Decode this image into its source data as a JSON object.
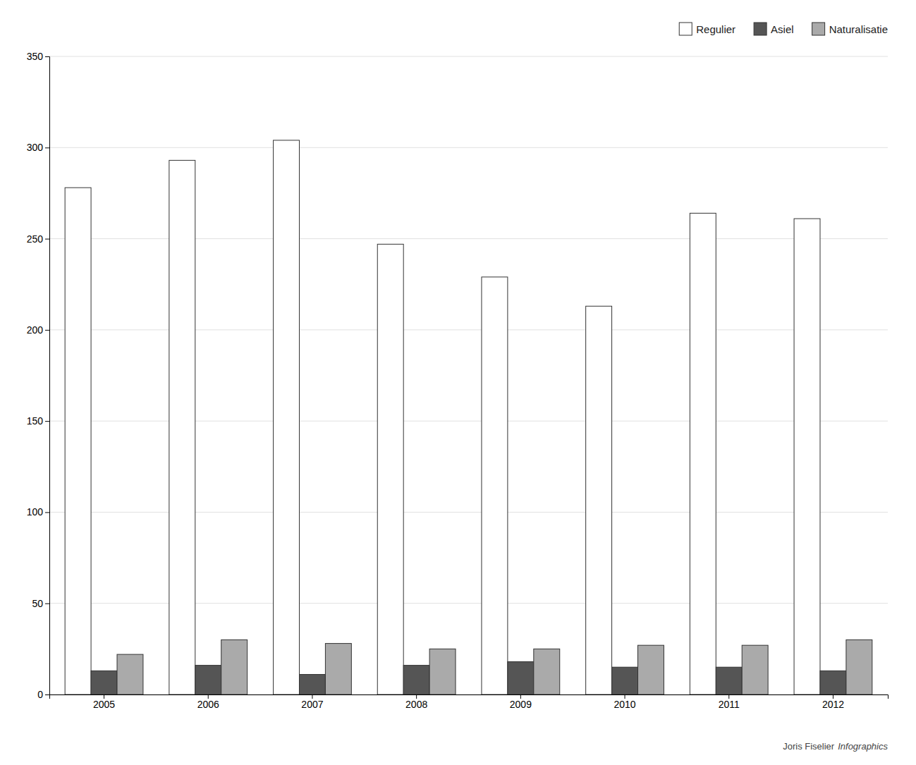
{
  "chart_data": {
    "type": "bar",
    "categories": [
      "2005",
      "2006",
      "2007",
      "2008",
      "2009",
      "2010",
      "2011",
      "2012"
    ],
    "series": [
      {
        "name": "Regulier",
        "color": "#ffffff",
        "values": [
          278,
          293,
          304,
          247,
          229,
          213,
          264,
          261
        ]
      },
      {
        "name": "Asiel",
        "color": "#555555",
        "values": [
          13,
          16,
          11,
          16,
          18,
          15,
          15,
          13
        ]
      },
      {
        "name": "Naturalisatie",
        "color": "#aaaaaa",
        "values": [
          22,
          30,
          28,
          25,
          25,
          27,
          27,
          30
        ]
      }
    ],
    "ylim": [
      0,
      350
    ],
    "yticks": [
      0,
      50,
      100,
      150,
      200,
      250,
      300,
      350
    ],
    "grid": true,
    "legend": "upper right",
    "annotations": [
      "Joris Fiselier",
      "Infographics"
    ]
  }
}
